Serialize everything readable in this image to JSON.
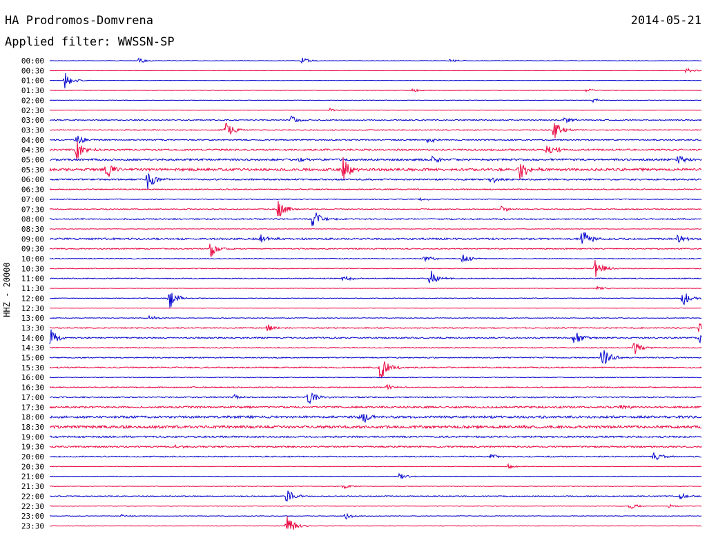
{
  "header": {
    "station": "HA Prodromos-Domvrena",
    "date": "2014-05-21",
    "filter_label": "Applied filter: WWSSN-SP",
    "channel_label": "HHZ - 20000"
  },
  "chart_data": {
    "type": "line",
    "title": "HA Prodromos-Domvrena",
    "subtitle": "Applied filter: WWSSN-SP",
    "date": "2014-05-21",
    "ylabel": "HHZ - 20000",
    "xlabel": "",
    "grid": false,
    "row_minutes": 30,
    "colors": [
      "#0000cc",
      "#e8003c"
    ],
    "rows": [
      {
        "label": "00:00",
        "color": "#0000cc",
        "noise": 0.3,
        "events": [
          {
            "t": 4.1,
            "a": 4
          },
          {
            "t": 11.6,
            "a": 5
          },
          {
            "t": 18.4,
            "a": 3
          }
        ]
      },
      {
        "label": "00:30",
        "color": "#e8003c",
        "noise": 0.2,
        "events": [
          {
            "t": 29.3,
            "a": 4
          }
        ]
      },
      {
        "label": "01:00",
        "color": "#0000cc",
        "noise": 0.3,
        "events": [
          {
            "t": 0.7,
            "a": 12
          }
        ]
      },
      {
        "label": "01:30",
        "color": "#e8003c",
        "noise": 0.3,
        "events": [
          {
            "t": 16.7,
            "a": 3
          },
          {
            "t": 24.7,
            "a": 3
          }
        ]
      },
      {
        "label": "02:00",
        "color": "#0000cc",
        "noise": 0.4,
        "events": [
          {
            "t": 25.0,
            "a": 3
          }
        ]
      },
      {
        "label": "02:30",
        "color": "#e8003c",
        "noise": 0.3,
        "events": [
          {
            "t": 12.9,
            "a": 3
          }
        ]
      },
      {
        "label": "03:00",
        "color": "#0000cc",
        "noise": 0.8,
        "events": [
          {
            "t": 11.1,
            "a": 7
          },
          {
            "t": 23.7,
            "a": 6
          }
        ]
      },
      {
        "label": "03:30",
        "color": "#e8003c",
        "noise": 0.7,
        "events": [
          {
            "t": 8.1,
            "a": 14
          },
          {
            "t": 23.2,
            "a": 16
          }
        ]
      },
      {
        "label": "04:00",
        "color": "#0000cc",
        "noise": 0.9,
        "events": [
          {
            "t": 1.2,
            "a": 9
          },
          {
            "t": 17.4,
            "a": 5
          }
        ]
      },
      {
        "label": "04:30",
        "color": "#e8003c",
        "noise": 1.2,
        "events": [
          {
            "t": 1.2,
            "a": 16
          },
          {
            "t": 22.9,
            "a": 14
          }
        ]
      },
      {
        "label": "05:00",
        "color": "#0000cc",
        "noise": 1.4,
        "events": [
          {
            "t": 11.4,
            "a": 5
          },
          {
            "t": 17.6,
            "a": 6
          },
          {
            "t": 28.9,
            "a": 6
          }
        ]
      },
      {
        "label": "05:30",
        "color": "#e8003c",
        "noise": 1.8,
        "events": [
          {
            "t": 2.6,
            "a": 14
          },
          {
            "t": 13.5,
            "a": 20
          },
          {
            "t": 21.6,
            "a": 18
          }
        ]
      },
      {
        "label": "06:00",
        "color": "#0000cc",
        "noise": 1.1,
        "events": [
          {
            "t": 4.5,
            "a": 18
          },
          {
            "t": 20.3,
            "a": 6
          }
        ]
      },
      {
        "label": "06:30",
        "color": "#e8003c",
        "noise": 0.8,
        "events": []
      },
      {
        "label": "07:00",
        "color": "#0000cc",
        "noise": 0.6,
        "events": [
          {
            "t": 17.0,
            "a": 4
          }
        ]
      },
      {
        "label": "07:30",
        "color": "#e8003c",
        "noise": 0.7,
        "events": [
          {
            "t": 10.5,
            "a": 16
          },
          {
            "t": 20.8,
            "a": 5
          }
        ]
      },
      {
        "label": "08:00",
        "color": "#0000cc",
        "noise": 0.9,
        "events": [
          {
            "t": 12.1,
            "a": 16
          }
        ]
      },
      {
        "label": "08:30",
        "color": "#e8003c",
        "noise": 0.4,
        "events": []
      },
      {
        "label": "09:00",
        "color": "#0000cc",
        "noise": 1.3,
        "events": [
          {
            "t": 9.7,
            "a": 9
          },
          {
            "t": 24.5,
            "a": 14
          },
          {
            "t": 28.9,
            "a": 7
          }
        ]
      },
      {
        "label": "09:30",
        "color": "#e8003c",
        "noise": 0.8,
        "events": [
          {
            "t": 7.4,
            "a": 14
          }
        ]
      },
      {
        "label": "10:00",
        "color": "#0000cc",
        "noise": 0.6,
        "events": [
          {
            "t": 17.2,
            "a": 7
          },
          {
            "t": 19.0,
            "a": 8
          }
        ]
      },
      {
        "label": "10:30",
        "color": "#e8003c",
        "noise": 0.6,
        "events": [
          {
            "t": 25.1,
            "a": 16
          }
        ]
      },
      {
        "label": "11:00",
        "color": "#0000cc",
        "noise": 0.7,
        "events": [
          {
            "t": 17.5,
            "a": 14
          },
          {
            "t": 13.5,
            "a": 6
          }
        ]
      },
      {
        "label": "11:30",
        "color": "#e8003c",
        "noise": 0.3,
        "events": [
          {
            "t": 25.2,
            "a": 4
          }
        ]
      },
      {
        "label": "12:00",
        "color": "#0000cc",
        "noise": 0.5,
        "events": [
          {
            "t": 5.5,
            "a": 16
          },
          {
            "t": 29.1,
            "a": 14
          }
        ]
      },
      {
        "label": "12:30",
        "color": "#e8003c",
        "noise": 0.3,
        "events": []
      },
      {
        "label": "13:00",
        "color": "#0000cc",
        "noise": 0.5,
        "events": [
          {
            "t": 4.6,
            "a": 4
          }
        ]
      },
      {
        "label": "13:30",
        "color": "#e8003c",
        "noise": 0.8,
        "events": [
          {
            "t": 10.0,
            "a": 7
          },
          {
            "t": 29.9,
            "a": 10
          }
        ]
      },
      {
        "label": "14:00",
        "color": "#0000cc",
        "noise": 1.0,
        "events": [
          {
            "t": 0.0,
            "a": 14
          },
          {
            "t": 24.1,
            "a": 14
          },
          {
            "t": 29.9,
            "a": 12
          }
        ]
      },
      {
        "label": "14:30",
        "color": "#e8003c",
        "noise": 0.7,
        "events": [
          {
            "t": 26.9,
            "a": 10
          }
        ]
      },
      {
        "label": "15:00",
        "color": "#0000cc",
        "noise": 0.8,
        "events": [
          {
            "t": 25.4,
            "a": 18
          }
        ]
      },
      {
        "label": "15:30",
        "color": "#e8003c",
        "noise": 0.9,
        "events": [
          {
            "t": 15.2,
            "a": 20
          }
        ]
      },
      {
        "label": "16:00",
        "color": "#0000cc",
        "noise": 0.6,
        "events": []
      },
      {
        "label": "16:30",
        "color": "#e8003c",
        "noise": 0.8,
        "events": [
          {
            "t": 15.5,
            "a": 4
          }
        ]
      },
      {
        "label": "17:00",
        "color": "#0000cc",
        "noise": 0.9,
        "events": [
          {
            "t": 11.9,
            "a": 14
          },
          {
            "t": 8.5,
            "a": 4
          }
        ]
      },
      {
        "label": "17:30",
        "color": "#e8003c",
        "noise": 1.4,
        "events": [
          {
            "t": 26.3,
            "a": 4
          }
        ]
      },
      {
        "label": "18:00",
        "color": "#0000cc",
        "noise": 1.6,
        "events": [
          {
            "t": 14.3,
            "a": 12
          }
        ]
      },
      {
        "label": "18:30",
        "color": "#e8003c",
        "noise": 1.9,
        "events": [
          {
            "t": 21.8,
            "a": 5
          }
        ]
      },
      {
        "label": "19:00",
        "color": "#0000cc",
        "noise": 1.2,
        "events": []
      },
      {
        "label": "19:30",
        "color": "#e8003c",
        "noise": 1.1,
        "events": [
          {
            "t": 5.8,
            "a": 4
          }
        ]
      },
      {
        "label": "20:00",
        "color": "#0000cc",
        "noise": 0.8,
        "events": [
          {
            "t": 20.3,
            "a": 4
          },
          {
            "t": 27.8,
            "a": 8
          }
        ]
      },
      {
        "label": "20:30",
        "color": "#e8003c",
        "noise": 0.4,
        "events": [
          {
            "t": 21.1,
            "a": 4
          }
        ]
      },
      {
        "label": "21:00",
        "color": "#0000cc",
        "noise": 0.4,
        "events": [
          {
            "t": 16.1,
            "a": 5
          }
        ]
      },
      {
        "label": "21:30",
        "color": "#e8003c",
        "noise": 0.4,
        "events": [
          {
            "t": 13.5,
            "a": 4
          }
        ]
      },
      {
        "label": "22:00",
        "color": "#0000cc",
        "noise": 0.7,
        "events": [
          {
            "t": 10.9,
            "a": 12
          },
          {
            "t": 29.0,
            "a": 5
          }
        ]
      },
      {
        "label": "22:30",
        "color": "#e8003c",
        "noise": 0.4,
        "events": [
          {
            "t": 26.7,
            "a": 5
          },
          {
            "t": 28.5,
            "a": 3
          }
        ]
      },
      {
        "label": "23:00",
        "color": "#0000cc",
        "noise": 0.4,
        "events": [
          {
            "t": 13.6,
            "a": 6
          },
          {
            "t": 3.3,
            "a": 3
          }
        ]
      },
      {
        "label": "23:30",
        "color": "#e8003c",
        "noise": 0.4,
        "events": [
          {
            "t": 10.9,
            "a": 16
          }
        ]
      }
    ]
  }
}
